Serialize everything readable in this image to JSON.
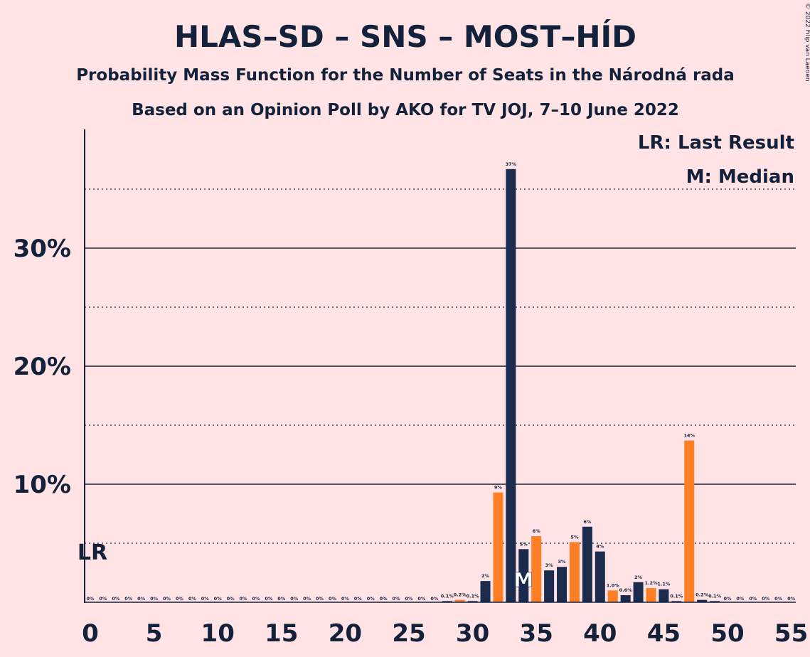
{
  "copyright": "© 2022 Filip van Laenen",
  "chart_data": {
    "type": "bar",
    "title": "HLAS–SD – SNS – MOST–HÍD",
    "subtitle": "Probability Mass Function for the Number of Seats in the Národná rada",
    "subtitle2": "Based on an Opinion Poll by AKO for TV JOJ, 7–10 June 2022",
    "xlim": [
      0,
      55
    ],
    "ylim": [
      0,
      40
    ],
    "x_ticks": [
      0,
      5,
      10,
      15,
      20,
      25,
      30,
      35,
      40,
      45,
      50,
      55
    ],
    "y_ticks": [
      {
        "value": 10,
        "label": "10%"
      },
      {
        "value": 20,
        "label": "20%"
      },
      {
        "value": 30,
        "label": "30%"
      }
    ],
    "minor_gridlines": [
      5,
      15,
      25,
      35
    ],
    "grid": true,
    "legend": [
      "LR: Last Result",
      "M: Median"
    ],
    "last_result": {
      "seats": 0,
      "label": "LR"
    },
    "median": {
      "seats": 34,
      "label": "M"
    },
    "colors": {
      "navy": "#1A2B4E",
      "orange": "#FF7F27",
      "background": "#FFE3E5",
      "text": "#13213A"
    },
    "bars": [
      {
        "x": 0,
        "value": 0,
        "label": "0%"
      },
      {
        "x": 1,
        "value": 0,
        "label": "0%"
      },
      {
        "x": 2,
        "value": 0,
        "label": "0%"
      },
      {
        "x": 3,
        "value": 0,
        "label": "0%"
      },
      {
        "x": 4,
        "value": 0,
        "label": "0%"
      },
      {
        "x": 5,
        "value": 0,
        "label": "0%"
      },
      {
        "x": 6,
        "value": 0,
        "label": "0%"
      },
      {
        "x": 7,
        "value": 0,
        "label": "0%"
      },
      {
        "x": 8,
        "value": 0,
        "label": "0%"
      },
      {
        "x": 9,
        "value": 0,
        "label": "0%"
      },
      {
        "x": 10,
        "value": 0,
        "label": "0%"
      },
      {
        "x": 11,
        "value": 0,
        "label": "0%"
      },
      {
        "x": 12,
        "value": 0,
        "label": "0%"
      },
      {
        "x": 13,
        "value": 0,
        "label": "0%"
      },
      {
        "x": 14,
        "value": 0,
        "label": "0%"
      },
      {
        "x": 15,
        "value": 0,
        "label": "0%"
      },
      {
        "x": 16,
        "value": 0,
        "label": "0%"
      },
      {
        "x": 17,
        "value": 0,
        "label": "0%"
      },
      {
        "x": 18,
        "value": 0,
        "label": "0%"
      },
      {
        "x": 19,
        "value": 0,
        "label": "0%"
      },
      {
        "x": 20,
        "value": 0,
        "label": "0%"
      },
      {
        "x": 21,
        "value": 0,
        "label": "0%"
      },
      {
        "x": 22,
        "value": 0,
        "label": "0%"
      },
      {
        "x": 23,
        "value": 0,
        "label": "0%"
      },
      {
        "x": 24,
        "value": 0,
        "label": "0%"
      },
      {
        "x": 25,
        "value": 0,
        "label": "0%"
      },
      {
        "x": 26,
        "value": 0,
        "label": "0%"
      },
      {
        "x": 27,
        "value": 0,
        "label": "0%"
      },
      {
        "x": 28,
        "value": 0.1,
        "label": "0.1%"
      },
      {
        "x": 29,
        "value": 0.2,
        "label": "0.2%"
      },
      {
        "x": 30,
        "value": 0.1,
        "label": "0.1%"
      },
      {
        "x": 31,
        "value": 1.8,
        "label": "2%"
      },
      {
        "x": 32,
        "value": 9.3,
        "label": "9%"
      },
      {
        "x": 33,
        "value": 36.7,
        "label": "37%"
      },
      {
        "x": 34,
        "value": 4.5,
        "label": "5%"
      },
      {
        "x": 35,
        "value": 5.6,
        "label": "6%"
      },
      {
        "x": 36,
        "value": 2.7,
        "label": "3%"
      },
      {
        "x": 37,
        "value": 3.0,
        "label": "3%"
      },
      {
        "x": 38,
        "value": 5.1,
        "label": "5%"
      },
      {
        "x": 39,
        "value": 6.4,
        "label": "6%"
      },
      {
        "x": 40,
        "value": 4.3,
        "label": "4%"
      },
      {
        "x": 41,
        "value": 1.0,
        "label": "1.0%"
      },
      {
        "x": 42,
        "value": 0.6,
        "label": "0.6%"
      },
      {
        "x": 43,
        "value": 1.7,
        "label": "2%"
      },
      {
        "x": 44,
        "value": 1.2,
        "label": "1.2%"
      },
      {
        "x": 45,
        "value": 1.1,
        "label": "1.1%"
      },
      {
        "x": 46,
        "value": 0.1,
        "label": "0.1%"
      },
      {
        "x": 47,
        "value": 13.7,
        "label": "14%"
      },
      {
        "x": 48,
        "value": 0.2,
        "label": "0.2%"
      },
      {
        "x": 49,
        "value": 0.1,
        "label": "0.1%"
      },
      {
        "x": 50,
        "value": 0,
        "label": "0%"
      },
      {
        "x": 51,
        "value": 0,
        "label": "0%"
      },
      {
        "x": 52,
        "value": 0,
        "label": "0%"
      },
      {
        "x": 53,
        "value": 0,
        "label": "0%"
      },
      {
        "x": 54,
        "value": 0,
        "label": "0%"
      },
      {
        "x": 55,
        "value": 0,
        "label": "0%"
      }
    ],
    "orange_seats": [
      29,
      32,
      35,
      38,
      41,
      44,
      47
    ]
  }
}
